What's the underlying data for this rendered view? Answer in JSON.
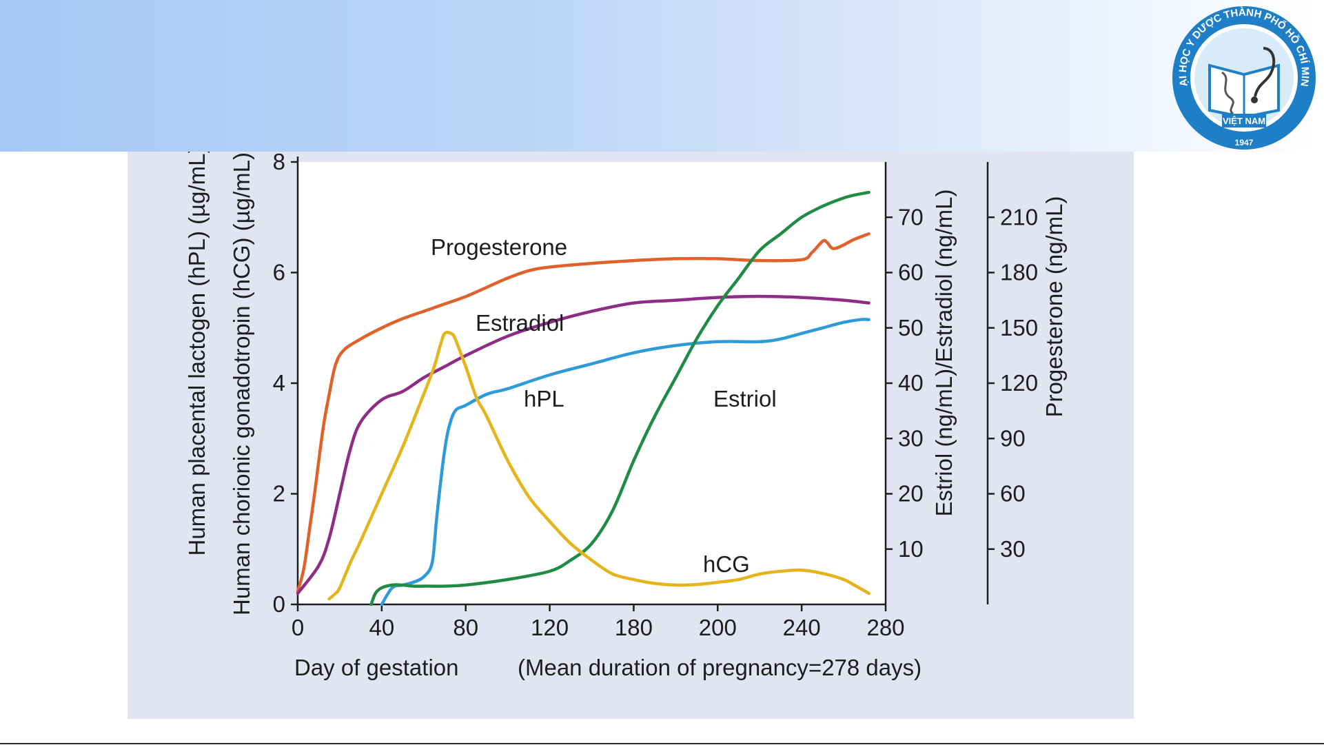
{
  "logo": {
    "ring_text": "ĐẠI HỌC Y DƯỢC THÀNH PHỐ HỒ CHÍ MINH",
    "country": "VIỆT NAM",
    "year": "1947",
    "icon": "university-seal-icon"
  },
  "chart_data": {
    "type": "line",
    "title": "",
    "xlabel": "Day of gestation",
    "xnote": "(Mean duration of pregnancy=278 days)",
    "x_ticks": [
      "0",
      "40",
      "80",
      "120",
      "180",
      "200",
      "240",
      "280"
    ],
    "xlim": [
      0,
      280
    ],
    "left_axis": {
      "label_outer": "Human placental lactogen (hPL) (µg/mL)",
      "label_inner": "Human chorionic gonadotropin (hCG) (µg/mL)",
      "ticks": [
        0,
        2,
        4,
        6,
        8
      ],
      "ylim": [
        0,
        8
      ]
    },
    "right_axis_1": {
      "label": "Estriol (ng/mL)/Estradiol (ng/mL)",
      "ticks": [
        10,
        20,
        30,
        40,
        50,
        60,
        70
      ],
      "ylim": [
        0,
        80
      ]
    },
    "right_axis_2": {
      "label": "Progesterone (ng/mL)",
      "ticks": [
        30,
        60,
        90,
        120,
        150,
        180,
        210
      ],
      "ylim": [
        0,
        240
      ]
    },
    "grid": false,
    "series": [
      {
        "name": "Progesterone",
        "axis": "right_axis_2",
        "color": "#e0622b",
        "x": [
          0,
          3,
          6,
          8,
          12,
          15,
          18,
          22,
          30,
          40,
          50,
          60,
          70,
          80,
          90,
          100,
          110,
          120,
          140,
          160,
          180,
          200,
          220,
          240,
          245,
          250,
          252,
          255,
          260,
          265,
          272
        ],
        "y": [
          7,
          20,
          44,
          60,
          95,
          114,
          130,
          138,
          144,
          150,
          155,
          159,
          163,
          167,
          172,
          177,
          181,
          183,
          185,
          186.5,
          187.5,
          187.5,
          186.5,
          187,
          191,
          197,
          196.5,
          193,
          195,
          198,
          201
        ]
      },
      {
        "name": "Estradiol",
        "axis": "right_axis_1",
        "color": "#8e2d86",
        "x": [
          0,
          10,
          15,
          20,
          25,
          30,
          40,
          50,
          60,
          70,
          80,
          100,
          120,
          140,
          160,
          180,
          200,
          220,
          240,
          260,
          272
        ],
        "y": [
          2,
          7,
          12,
          20,
          28,
          33,
          37,
          38.5,
          41,
          43,
          45,
          48.5,
          51,
          53,
          54.5,
          55,
          55.5,
          55.7,
          55.5,
          55,
          54.5
        ]
      },
      {
        "name": "hPL",
        "axis": "left_axis",
        "color": "#2e9ad9",
        "x": [
          40,
          45,
          50,
          55,
          60,
          64,
          66,
          68,
          70,
          72,
          75,
          80,
          90,
          100,
          120,
          140,
          160,
          180,
          200,
          220,
          230,
          240,
          250,
          260,
          268,
          272
        ],
        "y": [
          0,
          0.3,
          0.35,
          0.4,
          0.5,
          0.75,
          1.5,
          2.2,
          2.8,
          3.2,
          3.5,
          3.6,
          3.8,
          3.9,
          4.15,
          4.35,
          4.55,
          4.68,
          4.75,
          4.75,
          4.8,
          4.9,
          5.0,
          5.1,
          5.15,
          5.15
        ]
      },
      {
        "name": "Estriol",
        "axis": "right_axis_1",
        "color": "#1f8b45",
        "x": [
          35,
          37,
          40,
          45,
          50,
          55,
          60,
          70,
          80,
          100,
          120,
          130,
          140,
          150,
          160,
          170,
          180,
          190,
          200,
          210,
          220,
          230,
          240,
          250,
          260,
          265,
          272
        ],
        "y": [
          0,
          2,
          3,
          3.5,
          3.5,
          3.3,
          3.3,
          3.3,
          3.5,
          4.5,
          6,
          8,
          11,
          17,
          26,
          34,
          41,
          48,
          54,
          59,
          64,
          67,
          70,
          72,
          73.5,
          74,
          74.5
        ]
      },
      {
        "name": "hCG",
        "axis": "left_axis",
        "color": "#e5b41a",
        "x": [
          15,
          18,
          20,
          25,
          30,
          40,
          50,
          60,
          65,
          68,
          70,
          73,
          75,
          80,
          85,
          90,
          100,
          110,
          120,
          130,
          140,
          150,
          160,
          170,
          180,
          190,
          200,
          210,
          220,
          230,
          240,
          250,
          260,
          265,
          272
        ],
        "y": [
          0.1,
          0.2,
          0.3,
          0.75,
          1.15,
          2.0,
          2.85,
          3.8,
          4.3,
          4.7,
          4.9,
          4.9,
          4.8,
          4.3,
          3.75,
          3.4,
          2.6,
          1.95,
          1.5,
          1.1,
          0.8,
          0.55,
          0.45,
          0.38,
          0.35,
          0.36,
          0.4,
          0.45,
          0.55,
          0.6,
          0.62,
          0.56,
          0.45,
          0.35,
          0.2
        ]
      }
    ],
    "labels": {
      "Progesterone": "Progesterone",
      "Estradiol": "Estradiol",
      "hPL": "hPL",
      "Estriol": "Estriol",
      "hCG": "hCG"
    }
  }
}
